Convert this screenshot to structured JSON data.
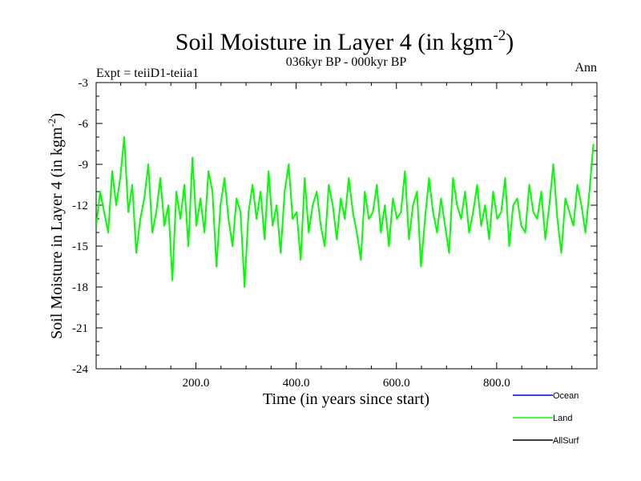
{
  "chart_data": {
    "type": "line",
    "title": {
      "main": "Soil Moisture in Layer 4 (in kgm",
      "sup": "-2",
      "close": ")"
    },
    "subtitle": "036kyr BP - 000kyr BP",
    "experiment_label": "Expt = teiiD1-teiia1",
    "season_label": "Ann",
    "xlabel": "Time (in years since start)",
    "ylabel": {
      "main": "Soil Moisture in Layer 4 (in kgm",
      "sup": "-2",
      "close": ")"
    },
    "xlim": [
      1,
      1000
    ],
    "ylim": [
      -24,
      -3
    ],
    "x_ticks": [
      200,
      400,
      600,
      800
    ],
    "x_tick_labels": [
      "200.0",
      "400.0",
      "600.0",
      "800.0"
    ],
    "y_ticks": [
      -3,
      -6,
      -9,
      -12,
      -15,
      -18,
      -21,
      -24
    ],
    "y_tick_labels": [
      "-3",
      "-6",
      "-9",
      "-12",
      "-15",
      "-18",
      "-21",
      "-24"
    ],
    "grid": false,
    "legend_position": "bottom-right, below plot",
    "series": [
      {
        "name": "Ocean",
        "color": "#0000ff",
        "x_step": 1,
        "values": []
      },
      {
        "name": "Land",
        "color": "#00ff00",
        "x_start": 1,
        "x_step": 8,
        "values": [
          -13.5,
          -11.0,
          -12.5,
          -14.0,
          -9.5,
          -12.0,
          -10.0,
          -7.0,
          -12.5,
          -10.5,
          -15.5,
          -13.0,
          -11.5,
          -9.0,
          -14.0,
          -12.5,
          -10.0,
          -13.5,
          -12.0,
          -17.5,
          -11.0,
          -13.0,
          -10.5,
          -15.0,
          -8.5,
          -13.5,
          -11.5,
          -14.0,
          -9.5,
          -11.0,
          -16.5,
          -12.0,
          -10.0,
          -13.0,
          -15.0,
          -11.5,
          -12.5,
          -18.0,
          -12.5,
          -10.5,
          -13.0,
          -11.0,
          -14.5,
          -9.5,
          -13.5,
          -12.0,
          -15.5,
          -11.0,
          -9.0,
          -13.0,
          -12.5,
          -16.0,
          -10.0,
          -14.0,
          -12.0,
          -11.0,
          -13.5,
          -15.0,
          -10.5,
          -12.0,
          -14.5,
          -11.5,
          -13.0,
          -10.0,
          -12.5,
          -14.0,
          -16.0,
          -11.0,
          -13.0,
          -12.5,
          -10.5,
          -14.0,
          -12.0,
          -15.0,
          -11.5,
          -13.0,
          -12.5,
          -9.5,
          -14.5,
          -12.0,
          -11.0,
          -16.5,
          -13.0,
          -10.0,
          -12.5,
          -14.0,
          -11.5,
          -13.5,
          -15.5,
          -10.0,
          -12.0,
          -13.0,
          -11.0,
          -14.0,
          -12.5,
          -10.5,
          -13.5,
          -12.0,
          -14.5,
          -11.0,
          -13.0,
          -12.5,
          -10.0,
          -15.0,
          -12.0,
          -11.5,
          -13.5,
          -14.0,
          -10.5,
          -12.5,
          -13.0,
          -11.0,
          -14.5,
          -12.0,
          -9.0,
          -13.0,
          -15.5,
          -11.5,
          -12.5,
          -13.5,
          -10.5,
          -12.0,
          -14.0,
          -11.0,
          -7.5
        ]
      },
      {
        "name": "AllSurf",
        "color": "#000000",
        "x_step": 1,
        "values": []
      }
    ]
  }
}
